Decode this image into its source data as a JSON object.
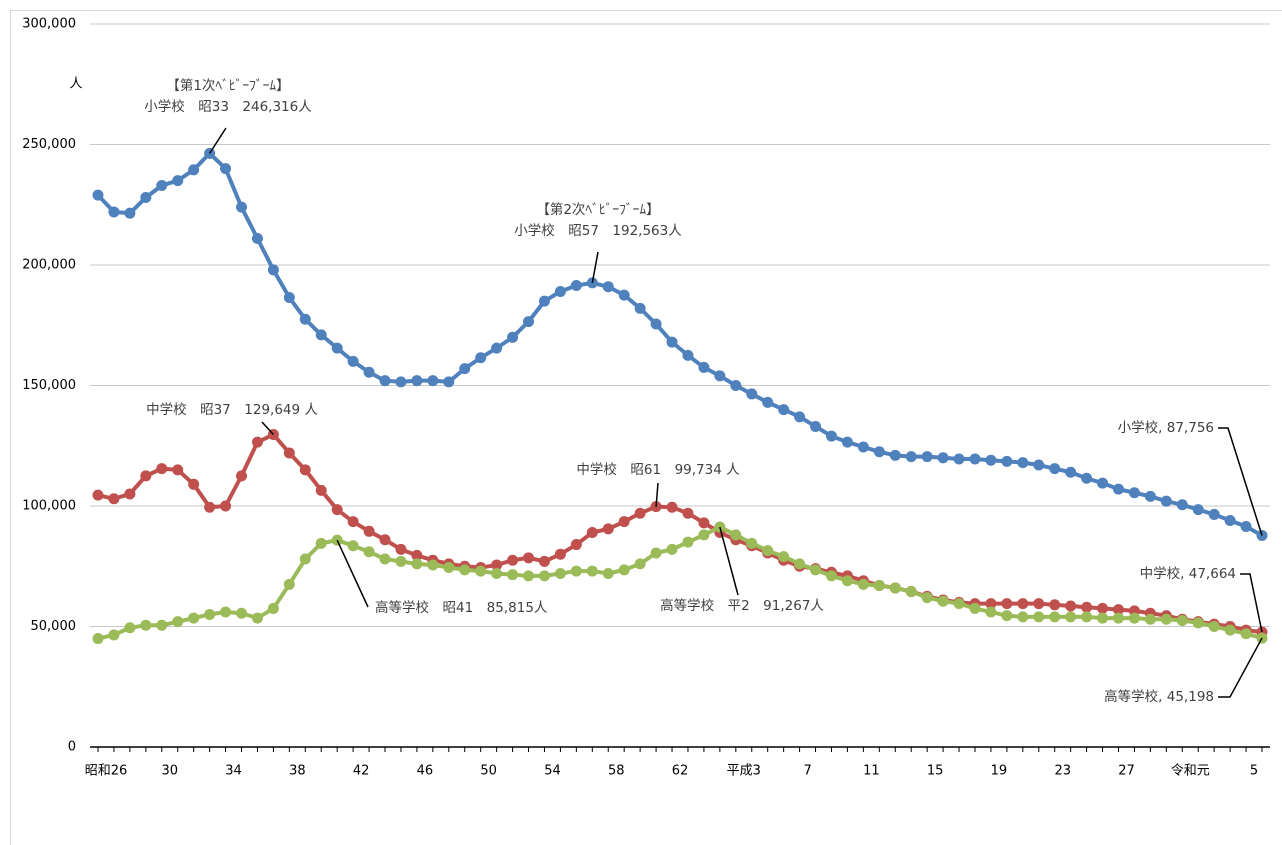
{
  "chart_data": {
    "type": "line",
    "unit_label": "人",
    "categories": [
      "昭和26",
      null,
      null,
      null,
      "30",
      null,
      null,
      null,
      "34",
      null,
      null,
      null,
      "38",
      null,
      null,
      null,
      "42",
      null,
      null,
      null,
      "46",
      null,
      null,
      null,
      "50",
      null,
      null,
      null,
      "54",
      null,
      null,
      null,
      "58",
      null,
      null,
      null,
      "62",
      null,
      null,
      null,
      "平成3",
      null,
      null,
      null,
      "7",
      null,
      null,
      null,
      "11",
      null,
      null,
      null,
      "15",
      null,
      null,
      null,
      "19",
      null,
      null,
      null,
      "23",
      null,
      null,
      null,
      "27",
      null,
      null,
      null,
      "令和元",
      null,
      null,
      null,
      "5",
      null
    ],
    "series": [
      {
        "color": "#4f81bd",
        "values": [
          229000,
          222000,
          221500,
          228000,
          233000,
          235000,
          239500,
          246316,
          240000,
          224000,
          211000,
          198000,
          186500,
          177500,
          171000,
          165500,
          160000,
          155500,
          152000,
          151500,
          152000,
          152000,
          151500,
          157000,
          161500,
          165500,
          170000,
          176500,
          185000,
          189000,
          191500,
          192563,
          191000,
          187500,
          182000,
          175500,
          168000,
          162500,
          157500,
          154000,
          150000,
          146500,
          143000,
          140000,
          137000,
          133000,
          129000,
          126500,
          124500,
          122500,
          121000,
          120500,
          120500,
          120000,
          119500,
          119500,
          119000,
          118500,
          118000,
          117000,
          115500,
          114000,
          111500,
          109500,
          107000,
          105500,
          104000,
          102000,
          100500,
          98500,
          96500,
          94000,
          91500,
          87756
        ]
      },
      {
        "color": "#c0504d",
        "values": [
          104500,
          103000,
          105000,
          112500,
          115500,
          115000,
          109000,
          99500,
          100000,
          112500,
          126500,
          129649,
          122000,
          115000,
          106500,
          98500,
          93500,
          89500,
          86000,
          82000,
          79500,
          77500,
          76000,
          75000,
          74500,
          75500,
          77500,
          78500,
          77000,
          80000,
          84000,
          89000,
          90500,
          93500,
          97000,
          99734,
          99500,
          97000,
          93000,
          89000,
          86000,
          83500,
          80500,
          77500,
          75000,
          74000,
          72500,
          71000,
          69000,
          67000,
          66000,
          64500,
          62500,
          61000,
          60000,
          59500,
          59500,
          59500,
          59500,
          59500,
          59000,
          58500,
          58000,
          57500,
          57000,
          56500,
          55500,
          54500,
          53000,
          52000,
          51000,
          50000,
          48500,
          47664
        ]
      },
      {
        "color": "#9bbb59",
        "values": [
          45000,
          46500,
          49500,
          50500,
          50500,
          52000,
          53500,
          55000,
          56000,
          55500,
          53500,
          57500,
          67500,
          78000,
          84500,
          85815,
          83500,
          81000,
          78000,
          77000,
          76000,
          75500,
          74500,
          73500,
          73000,
          72000,
          71500,
          71000,
          71000,
          72000,
          73000,
          73000,
          72000,
          73500,
          76000,
          80500,
          82000,
          85000,
          88000,
          91267,
          88000,
          84500,
          81500,
          79000,
          76000,
          73500,
          71000,
          69000,
          67500,
          67000,
          66000,
          64500,
          62000,
          60500,
          59500,
          57500,
          56000,
          54500,
          54000,
          54000,
          54000,
          54000,
          54000,
          53500,
          53500,
          53500,
          53000,
          53000,
          52500,
          51500,
          50000,
          48500,
          47000,
          45198
        ]
      }
    ],
    "ylim": [
      0,
      300000
    ],
    "yticks": [
      0,
      {
        "value": 50000,
        "label": "50,000"
      },
      {
        "value": 100000,
        "label": "100,000"
      },
      {
        "value": 150000,
        "label": "150,000"
      },
      {
        "value": 200000,
        "label": "200,000"
      },
      {
        "value": 250000,
        "label": "250,000"
      },
      {
        "value": 300000,
        "label": "300,000"
      }
    ],
    "grid": true,
    "annotations": [
      {
        "lines": [
          "【第1次ﾍﾞﾋﾞｰﾌﾞｰﾑ】",
          "小学校　昭33　246,316人"
        ]
      },
      {
        "lines": [
          "【第2次ﾍﾞﾋﾞｰﾌﾞｰﾑ】",
          "小学校　昭57　192,563人"
        ]
      },
      {
        "lines": [
          "中学校　昭37　129,649 人"
        ]
      },
      {
        "lines": [
          "中学校　昭61　99,734 人"
        ]
      },
      {
        "lines": [
          "高等学校　昭41　85,815人"
        ]
      },
      {
        "lines": [
          "高等学校　平2　91,267人"
        ]
      },
      {
        "lines": [
          "小学校, 87,756"
        ]
      },
      {
        "lines": [
          "中学校, 47,664"
        ]
      },
      {
        "lines": [
          "高等学校, 45,198"
        ]
      }
    ]
  }
}
